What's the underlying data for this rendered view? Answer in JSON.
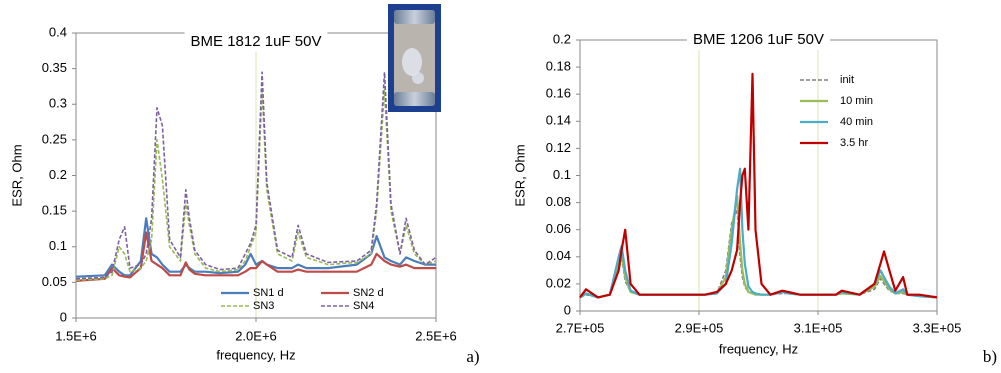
{
  "chart_data": [
    {
      "type": "line",
      "title": "BME 1812 1uF 50V",
      "panel_label": "a)",
      "xlabel": "frequency, Hz",
      "ylabel": "ESR, Ohm",
      "x": [
        1500000,
        1580000,
        1600000,
        1620000,
        1635000,
        1650000,
        1680000,
        1695000,
        1710000,
        1725000,
        1740000,
        1760000,
        1790000,
        1805000,
        1815000,
        1830000,
        1860000,
        1900000,
        1950000,
        1970000,
        1985000,
        2000000,
        2017000,
        2030000,
        2060000,
        2100000,
        2117000,
        2140000,
        2200000,
        2280000,
        2320000,
        2335000,
        2357000,
        2375000,
        2400000,
        2417000,
        2440000,
        2470000,
        2500000
      ],
      "series": [
        {
          "name": "SN1 d",
          "color": "#4a7ebb",
          "linestyle": "solid",
          "values": [
            0.058,
            0.06,
            0.075,
            0.065,
            0.06,
            0.06,
            0.08,
            0.14,
            0.09,
            0.085,
            0.075,
            0.065,
            0.065,
            0.075,
            0.07,
            0.065,
            0.065,
            0.063,
            0.065,
            0.075,
            0.09,
            0.075,
            0.08,
            0.075,
            0.07,
            0.07,
            0.075,
            0.07,
            0.07,
            0.075,
            0.09,
            0.115,
            0.085,
            0.08,
            0.075,
            0.085,
            0.08,
            0.075,
            0.075
          ]
        },
        {
          "name": "SN2 d",
          "color": "#be4b48",
          "linestyle": "solid",
          "values": [
            0.052,
            0.055,
            0.07,
            0.06,
            0.058,
            0.057,
            0.07,
            0.12,
            0.08,
            0.075,
            0.07,
            0.06,
            0.06,
            0.078,
            0.068,
            0.062,
            0.06,
            0.06,
            0.06,
            0.065,
            0.07,
            0.07,
            0.08,
            0.075,
            0.065,
            0.065,
            0.068,
            0.065,
            0.065,
            0.065,
            0.075,
            0.09,
            0.08,
            0.075,
            0.072,
            0.075,
            0.07,
            0.07,
            0.07
          ]
        },
        {
          "name": "SN3",
          "color": "#98b954",
          "linestyle": "dashed",
          "values": [
            0.053,
            0.055,
            0.06,
            0.1,
            0.09,
            0.065,
            0.07,
            0.08,
            0.11,
            0.25,
            0.195,
            0.1,
            0.08,
            0.16,
            0.13,
            0.09,
            0.07,
            0.065,
            0.068,
            0.08,
            0.1,
            0.12,
            0.32,
            0.18,
            0.09,
            0.08,
            0.12,
            0.085,
            0.075,
            0.078,
            0.09,
            0.15,
            0.32,
            0.15,
            0.09,
            0.13,
            0.09,
            0.075,
            0.08
          ]
        },
        {
          "name": "SN4",
          "color": "#7d60a0",
          "linestyle": "dashed",
          "values": [
            0.055,
            0.057,
            0.065,
            0.11,
            0.128,
            0.07,
            0.075,
            0.09,
            0.14,
            0.295,
            0.27,
            0.11,
            0.085,
            0.18,
            0.14,
            0.095,
            0.075,
            0.068,
            0.07,
            0.09,
            0.105,
            0.13,
            0.345,
            0.19,
            0.095,
            0.085,
            0.13,
            0.09,
            0.078,
            0.08,
            0.095,
            0.16,
            0.345,
            0.16,
            0.09,
            0.14,
            0.095,
            0.075,
            0.085
          ]
        }
      ],
      "xlim": [
        1500000,
        2500000
      ],
      "xticks": [
        {
          "value": 1500000,
          "label": "1.5E+6"
        },
        {
          "value": 2000000,
          "label": "2.0E+6"
        },
        {
          "value": 2500000,
          "label": "2.5E+6"
        }
      ],
      "ylim": [
        0,
        0.4
      ],
      "yticks": [
        0,
        0.05,
        0.1,
        0.15,
        0.2,
        0.25,
        0.3,
        0.35,
        0.4
      ],
      "grid": "x",
      "legend": "lower center"
    },
    {
      "type": "line",
      "title": "BME 1206 1uF 50V",
      "panel_label": "b)",
      "xlabel": "frequency, Hz",
      "ylabel": "ESR, Ohm",
      "x": [
        270000,
        271000,
        273000,
        275000,
        276500,
        277000,
        277600,
        278500,
        280000,
        282000,
        285000,
        288000,
        291000,
        293000,
        294500,
        295500,
        296400,
        296900,
        297300,
        297700,
        298300,
        299000,
        299500,
        300500,
        302000,
        304000,
        305000,
        307000,
        310000,
        313000,
        314000,
        317000,
        319500,
        320500,
        321100,
        322000,
        323000,
        324300,
        325000,
        327000,
        330000
      ],
      "series": [
        {
          "name": "init",
          "color": "#7f7f7f",
          "linestyle": "dashed",
          "values": [
            0.01,
            0.012,
            0.01,
            0.012,
            0.03,
            0.04,
            0.022,
            0.014,
            0.012,
            0.012,
            0.012,
            0.012,
            0.012,
            0.013,
            0.03,
            0.065,
            0.075,
            0.04,
            0.025,
            0.018,
            0.014,
            0.013,
            0.012,
            0.012,
            0.012,
            0.013,
            0.013,
            0.012,
            0.012,
            0.012,
            0.013,
            0.012,
            0.016,
            0.024,
            0.02,
            0.015,
            0.013,
            0.013,
            0.012,
            0.011,
            0.01
          ]
        },
        {
          "name": "10 min",
          "color": "#9bbb59",
          "linestyle": "solid",
          "values": [
            0.01,
            0.013,
            0.01,
            0.012,
            0.035,
            0.042,
            0.025,
            0.014,
            0.012,
            0.012,
            0.012,
            0.012,
            0.012,
            0.013,
            0.025,
            0.06,
            0.085,
            0.05,
            0.03,
            0.02,
            0.014,
            0.013,
            0.012,
            0.012,
            0.012,
            0.014,
            0.013,
            0.012,
            0.012,
            0.012,
            0.013,
            0.012,
            0.018,
            0.026,
            0.022,
            0.016,
            0.013,
            0.014,
            0.012,
            0.011,
            0.01
          ]
        },
        {
          "name": "40 min",
          "color": "#4bacc6",
          "linestyle": "solid",
          "values": [
            0.01,
            0.013,
            0.01,
            0.012,
            0.04,
            0.048,
            0.03,
            0.015,
            0.012,
            0.012,
            0.012,
            0.012,
            0.012,
            0.013,
            0.02,
            0.05,
            0.09,
            0.105,
            0.06,
            0.035,
            0.018,
            0.014,
            0.013,
            0.012,
            0.012,
            0.014,
            0.013,
            0.012,
            0.012,
            0.012,
            0.014,
            0.012,
            0.02,
            0.03,
            0.025,
            0.018,
            0.013,
            0.016,
            0.012,
            0.011,
            0.01
          ]
        },
        {
          "name": "3.5 hr",
          "color": "#c00000",
          "linestyle": "solid",
          "values": [
            0.01,
            0.016,
            0.01,
            0.012,
            0.03,
            0.045,
            0.06,
            0.02,
            0.012,
            0.012,
            0.012,
            0.012,
            0.012,
            0.014,
            0.02,
            0.03,
            0.045,
            0.08,
            0.1,
            0.105,
            0.06,
            0.175,
            0.06,
            0.02,
            0.012,
            0.015,
            0.014,
            0.012,
            0.012,
            0.012,
            0.015,
            0.012,
            0.02,
            0.035,
            0.044,
            0.03,
            0.015,
            0.025,
            0.012,
            0.012,
            0.01
          ]
        }
      ],
      "xlim": [
        270000,
        330000
      ],
      "xticks": [
        {
          "value": 270000,
          "label": "2.7E+05"
        },
        {
          "value": 290000,
          "label": "2.9E+05"
        },
        {
          "value": 310000,
          "label": "3.1E+05"
        },
        {
          "value": 330000,
          "label": "3.3E+05"
        }
      ],
      "ylim": [
        0,
        0.2
      ],
      "yticks": [
        0,
        0.02,
        0.04,
        0.06,
        0.08,
        0.1,
        0.12,
        0.14,
        0.16,
        0.18,
        0.2
      ],
      "grid": "x",
      "legend": "upper right"
    }
  ]
}
